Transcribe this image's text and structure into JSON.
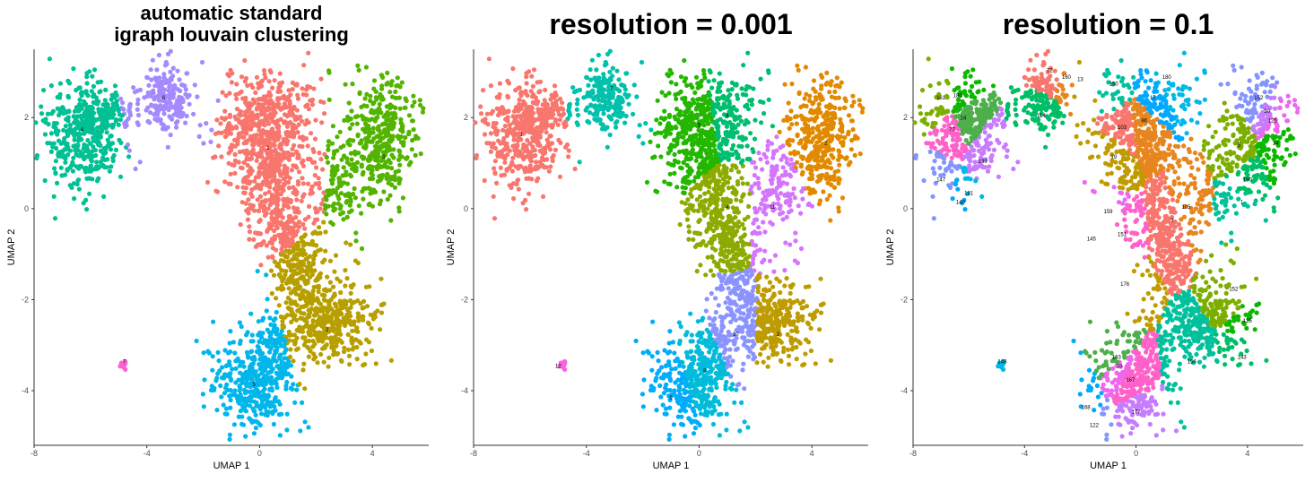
{
  "chart_data": [
    {
      "type": "scatter",
      "title_lines": [
        "automatic standard",
        "igraph louvain clustering"
      ],
      "xlabel": "UMAP 1",
      "ylabel": "UMAP 2",
      "xlim": [
        -8,
        6
      ],
      "ylim": [
        -5.2,
        3.5
      ],
      "xticks": [
        -8,
        -4,
        0,
        4
      ],
      "yticks": [
        -4,
        -2,
        0,
        2
      ],
      "grid": false,
      "legend": "none",
      "clusters": [
        {
          "label": "1",
          "color": "#F8766D",
          "label_pos": [
            0.3,
            1.3
          ]
        },
        {
          "label": "2",
          "color": "#B79F00",
          "label_pos": [
            2.4,
            -2.7
          ]
        },
        {
          "label": "3",
          "color": "#53B400",
          "label_pos": [
            4.4,
            1.1
          ]
        },
        {
          "label": "4",
          "color": "#00C094",
          "label_pos": [
            -6.3,
            1.7
          ]
        },
        {
          "label": "5",
          "color": "#00B6EB",
          "label_pos": [
            -0.2,
            -3.9
          ]
        },
        {
          "label": "6",
          "color": "#A58AFF",
          "label_pos": [
            -3.4,
            2.4
          ]
        },
        {
          "label": "7",
          "color": "#FB61D7",
          "label_pos": [
            -4.8,
            -3.4
          ]
        }
      ]
    },
    {
      "type": "scatter",
      "title_lines": [
        "resolution = 0.001"
      ],
      "xlabel": "UMAP 1",
      "ylabel": "UMAP 2",
      "xlim": [
        -8,
        6
      ],
      "ylim": [
        -5.2,
        3.5
      ],
      "xticks": [
        -8,
        -4,
        0,
        4
      ],
      "yticks": [
        -4,
        -2,
        0,
        2
      ],
      "grid": false,
      "legend": "none",
      "clusters": [
        {
          "label": "1",
          "color": "#F8766D",
          "label_pos": [
            -6.3,
            1.6
          ]
        },
        {
          "label": "2",
          "color": "#E18A00",
          "label_pos": [
            4.5,
            1.4
          ]
        },
        {
          "label": "3",
          "color": "#BE9C00",
          "label_pos": [
            2.8,
            -2.8
          ]
        },
        {
          "label": "4",
          "color": "#8CAB00",
          "label_pos": [
            1.0,
            0.0
          ]
        },
        {
          "label": "5",
          "color": "#24B700",
          "label_pos": [
            0.0,
            1.8
          ]
        },
        {
          "label": "6",
          "color": "#00BE70",
          "label_pos": [
            1.0,
            2.0
          ]
        },
        {
          "label": "7",
          "color": "#00C1AB",
          "label_pos": [
            -3.1,
            2.6
          ]
        },
        {
          "label": "8",
          "color": "#00BBDA",
          "label_pos": [
            0.2,
            -3.6
          ]
        },
        {
          "label": "9",
          "color": "#00ACFC",
          "label_pos": [
            -1.0,
            -4.2
          ]
        },
        {
          "label": "10",
          "color": "#8B93FF",
          "label_pos": [
            1.3,
            -2.8
          ]
        },
        {
          "label": "11",
          "color": "#D575FE",
          "label_pos": [
            2.6,
            0.0
          ]
        },
        {
          "label": "12",
          "color": "#F962DD",
          "label_pos": [
            -5.0,
            -3.5
          ]
        }
      ]
    },
    {
      "type": "scatter",
      "title_lines": [
        "resolution = 0.1"
      ],
      "xlabel": "UMAP 1",
      "ylabel": "UMAP 2",
      "xlim": [
        -8,
        6
      ],
      "ylim": [
        -5.2,
        3.5
      ],
      "xticks": [
        -8,
        -4,
        0,
        4
      ],
      "yticks": [
        -4,
        -2,
        0,
        2
      ],
      "grid": false,
      "legend": "none",
      "palette": [
        "#F8766D",
        "#E7851E",
        "#C09B00",
        "#7CAE00",
        "#0CB702",
        "#00BE67",
        "#00C19C",
        "#00B8E7",
        "#00A9FF",
        "#8494FF",
        "#C77CFF",
        "#ED68ED",
        "#FF61C9",
        "#4DAF4A"
      ],
      "clusters": [
        {
          "label": "72",
          "pos": [
            -3.1,
            3.0
          ]
        },
        {
          "label": "160",
          "pos": [
            -2.5,
            2.85
          ]
        },
        {
          "label": "13",
          "pos": [
            -2.0,
            2.8
          ]
        },
        {
          "label": "161",
          "pos": [
            -7.0,
            2.4
          ]
        },
        {
          "label": "180",
          "pos": [
            -6.4,
            2.45
          ]
        },
        {
          "label": "114",
          "pos": [
            -3.4,
            2.0
          ]
        },
        {
          "label": "150",
          "pos": [
            -0.8,
            2.7
          ]
        },
        {
          "label": "180",
          "pos": [
            1.1,
            2.85
          ]
        },
        {
          "label": "17",
          "pos": [
            0.6,
            2.4
          ]
        },
        {
          "label": "152",
          "pos": [
            4.4,
            2.4
          ]
        },
        {
          "label": "30",
          "pos": [
            4.7,
            2.1
          ]
        },
        {
          "label": "125",
          "pos": [
            4.9,
            1.9
          ]
        },
        {
          "label": "77",
          "pos": [
            -6.6,
            1.7
          ]
        },
        {
          "label": "14",
          "pos": [
            -6.2,
            1.95
          ]
        },
        {
          "label": "103",
          "pos": [
            -0.5,
            1.75
          ]
        },
        {
          "label": "86",
          "pos": [
            0.3,
            1.9
          ]
        },
        {
          "label": "19",
          "pos": [
            -0.8,
            1.1
          ]
        },
        {
          "label": "5",
          "pos": [
            3.7,
            1.35
          ]
        },
        {
          "label": "14",
          "pos": [
            5.0,
            1.4
          ]
        },
        {
          "label": "190",
          "pos": [
            4.0,
            0.6
          ]
        },
        {
          "label": "1",
          "pos": [
            3.8,
            0.1
          ]
        },
        {
          "label": "181",
          "pos": [
            -6.0,
            0.3
          ]
        },
        {
          "label": "140",
          "pos": [
            -6.3,
            0.1
          ]
        },
        {
          "label": "147",
          "pos": [
            -7.0,
            0.6
          ]
        },
        {
          "label": "139",
          "pos": [
            -5.5,
            1.0
          ]
        },
        {
          "label": "159",
          "pos": [
            -1.0,
            -0.1
          ]
        },
        {
          "label": "151",
          "pos": [
            -0.5,
            -0.6
          ]
        },
        {
          "label": "145",
          "pos": [
            -1.6,
            -0.7
          ]
        },
        {
          "label": "3",
          "pos": [
            1.3,
            -0.3
          ]
        },
        {
          "label": "105",
          "pos": [
            1.8,
            0.0
          ]
        },
        {
          "label": "176",
          "pos": [
            -0.4,
            -1.7
          ]
        },
        {
          "label": "152",
          "pos": [
            3.5,
            -1.8
          ]
        },
        {
          "label": "125",
          "pos": [
            4.0,
            -2.5
          ]
        },
        {
          "label": "143",
          "pos": [
            3.8,
            -3.3
          ]
        },
        {
          "label": "156",
          "pos": [
            2.0,
            -3.4
          ]
        },
        {
          "label": "148",
          "pos": [
            -4.8,
            -3.4
          ]
        },
        {
          "label": "168",
          "pos": [
            -1.8,
            -4.4
          ]
        },
        {
          "label": "122",
          "pos": [
            -1.5,
            -4.8
          ]
        },
        {
          "label": "177",
          "pos": [
            0.0,
            -4.5
          ]
        },
        {
          "label": "10",
          "pos": [
            -0.6,
            -3.5
          ]
        },
        {
          "label": "167",
          "pos": [
            -0.2,
            -3.8
          ]
        },
        {
          "label": "183",
          "pos": [
            -0.7,
            -3.3
          ]
        }
      ]
    }
  ]
}
